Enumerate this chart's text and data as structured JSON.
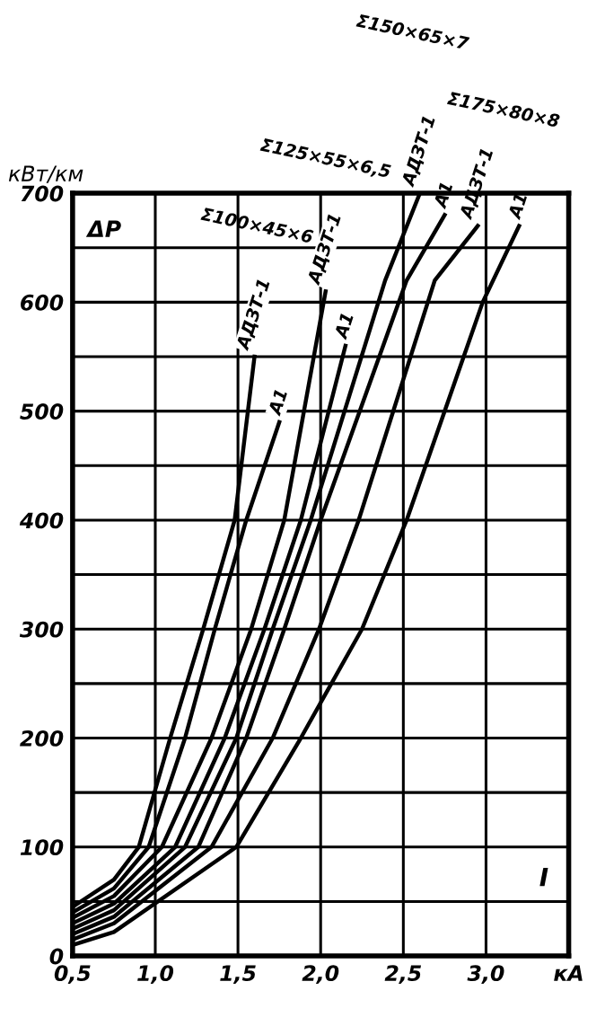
{
  "chart_data": {
    "type": "line",
    "xlabel": "I",
    "ylabel": "кВт/км",
    "xlim": [
      0.5,
      3.5
    ],
    "ylim": [
      0,
      700
    ],
    "xticks": [
      {
        "value": 0.5,
        "label": "0,5"
      },
      {
        "value": 1.0,
        "label": "1,0"
      },
      {
        "value": 1.5,
        "label": "1,5"
      },
      {
        "value": 2.0,
        "label": "2,0"
      },
      {
        "value": 2.5,
        "label": "2,5"
      },
      {
        "value": 3.0,
        "label": "3,0"
      },
      {
        "value": 3.5,
        "label": "кА"
      }
    ],
    "yticks": [
      0,
      {
        "value": 50,
        "label": null
      },
      100,
      {
        "value": 150,
        "label": null
      },
      200,
      {
        "value": 250,
        "label": null
      },
      300,
      {
        "value": 350,
        "label": null
      },
      400,
      {
        "value": 450,
        "label": null
      },
      500,
      {
        "value": 550,
        "label": null
      },
      600,
      {
        "value": 650,
        "label": null
      },
      700
    ],
    "grid": true,
    "legend": false,
    "marker": "none",
    "line_style": "solid",
    "series": [
      {
        "name": "АДЗТ-1",
        "color": "#000000",
        "x": [
          0.5,
          0.75,
          0.9,
          1.09,
          1.29,
          1.48,
          1.6
        ],
        "values": [
          45,
          70,
          100,
          200,
          300,
          400,
          550
        ]
      },
      {
        "name": "А1",
        "color": "#000000",
        "x": [
          0.5,
          0.75,
          0.96,
          1.18,
          1.36,
          1.55,
          1.75
        ],
        "values": [
          40,
          62,
          100,
          200,
          300,
          400,
          490
        ]
      },
      {
        "name": "АДЗТ-1",
        "color": "#000000",
        "x": [
          0.5,
          0.75,
          1.04,
          1.34,
          1.58,
          1.78,
          2.03
        ],
        "values": [
          35,
          55,
          100,
          200,
          300,
          400,
          610
        ]
      },
      {
        "name": "А1",
        "color": "#000000",
        "x": [
          0.5,
          0.75,
          1.12,
          1.42,
          1.66,
          1.88,
          2.15
        ],
        "values": [
          30,
          48,
          100,
          200,
          300,
          400,
          560
        ]
      },
      {
        "name": "АДЗТ-1",
        "color": "#000000",
        "x": [
          0.5,
          0.75,
          1.18,
          1.49,
          1.71,
          1.94,
          2.39,
          2.6
        ],
        "values": [
          25,
          42,
          100,
          200,
          300,
          400,
          620,
          700
        ]
      },
      {
        "name": "А1",
        "color": "#000000",
        "x": [
          0.5,
          0.75,
          1.26,
          1.55,
          1.78,
          2.0,
          2.52,
          2.75
        ],
        "values": [
          20,
          36,
          100,
          200,
          300,
          400,
          620,
          680
        ]
      },
      {
        "name": "АДЗТ-1",
        "color": "#000000",
        "x": [
          0.5,
          0.75,
          1.34,
          1.71,
          1.99,
          2.23,
          2.69,
          2.95
        ],
        "values": [
          15,
          30,
          100,
          200,
          300,
          400,
          620,
          670
        ]
      },
      {
        "name": "А1",
        "color": "#000000",
        "x": [
          0.5,
          0.75,
          1.49,
          1.88,
          2.25,
          2.52,
          2.98,
          3.2
        ],
        "values": [
          10,
          22,
          100,
          200,
          300,
          400,
          600,
          670
        ]
      }
    ],
    "annotations": [
      "ΔP",
      "Σ100×45×6",
      "Σ125×55×6,5",
      "Σ150×65×7",
      "Σ175×80×8"
    ]
  }
}
